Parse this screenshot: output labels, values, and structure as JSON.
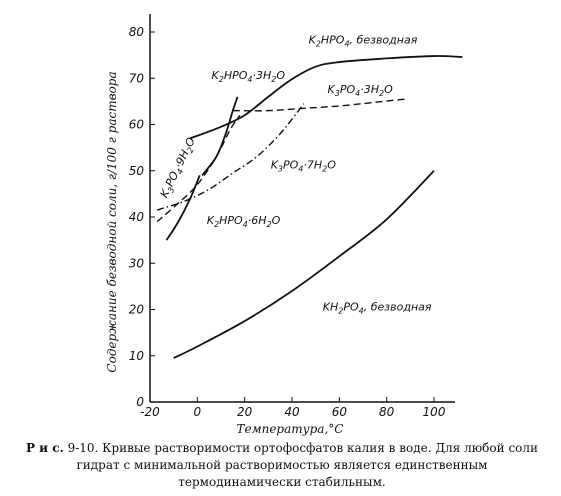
{
  "chart_data": {
    "type": "line",
    "title": "",
    "xlabel": "Температура,°С",
    "ylabel": "Содержание безводной соли, г/100 г раствора",
    "xlim": [
      -20,
      110
    ],
    "ylim": [
      0,
      85
    ],
    "x_ticks": [
      -20,
      0,
      20,
      40,
      60,
      80,
      100
    ],
    "y_ticks": [
      0,
      10,
      20,
      30,
      40,
      50,
      60,
      70,
      80
    ],
    "grid": false,
    "legend": "none",
    "series": [
      {
        "name": "K2HPO4, безводная",
        "style": "solid",
        "label_parts": [
          [
            "K",
            ""
          ],
          [
            "2",
            "sub"
          ],
          [
            "HPO",
            ""
          ],
          [
            "4",
            "sub"
          ],
          [
            ", безводная",
            ""
          ]
        ],
        "points": [
          [
            -3,
            57
          ],
          [
            10,
            59.5
          ],
          [
            20,
            62
          ],
          [
            30,
            66
          ],
          [
            40,
            69.8
          ],
          [
            50,
            72.5
          ],
          [
            60,
            73.5
          ],
          [
            80,
            74.3
          ],
          [
            100,
            74.8
          ],
          [
            112,
            74.6
          ]
        ]
      },
      {
        "name": "K2HPO4·3H2O",
        "style": "solid",
        "label_parts": [
          [
            "K",
            ""
          ],
          [
            "2",
            "sub"
          ],
          [
            "HPO",
            ""
          ],
          [
            "4",
            "sub"
          ],
          [
            "·3H",
            ""
          ],
          [
            "2",
            "sub"
          ],
          [
            "O",
            ""
          ]
        ],
        "points": [
          [
            2,
            49
          ],
          [
            8,
            53
          ],
          [
            12,
            58
          ],
          [
            15,
            63
          ],
          [
            17,
            66
          ]
        ]
      },
      {
        "name": "K2HPO4·6H2O",
        "style": "solid",
        "label_parts": [
          [
            "K",
            ""
          ],
          [
            "2",
            "sub"
          ],
          [
            "HPO",
            ""
          ],
          [
            "4",
            "sub"
          ],
          [
            "·6H",
            ""
          ],
          [
            "2",
            "sub"
          ],
          [
            "O",
            ""
          ]
        ],
        "points": [
          [
            -13,
            35
          ],
          [
            -8,
            39
          ],
          [
            -3,
            44
          ],
          [
            1,
            49
          ]
        ]
      },
      {
        "name": "K3PO4·9H2O",
        "style": "dashed",
        "label_parts": [
          [
            "K",
            ""
          ],
          [
            "3",
            "sub"
          ],
          [
            "PO",
            ""
          ],
          [
            "4",
            "sub"
          ],
          [
            "·9H",
            ""
          ],
          [
            "2",
            "sub"
          ],
          [
            "O",
            ""
          ]
        ],
        "points": [
          [
            -17,
            39
          ],
          [
            -8,
            43
          ],
          [
            0,
            47
          ],
          [
            8,
            53
          ],
          [
            14,
            59
          ],
          [
            18,
            62
          ]
        ]
      },
      {
        "name": "K3PO4·7H2O",
        "style": "dash-dot",
        "label_parts": [
          [
            "K",
            ""
          ],
          [
            "3",
            "sub"
          ],
          [
            "PO",
            ""
          ],
          [
            "4",
            "sub"
          ],
          [
            "·7H",
            ""
          ],
          [
            "2",
            "sub"
          ],
          [
            "O",
            ""
          ]
        ],
        "points": [
          [
            -17,
            41.5
          ],
          [
            -5,
            43.5
          ],
          [
            5,
            46
          ],
          [
            15,
            49.5
          ],
          [
            25,
            53
          ],
          [
            35,
            58
          ],
          [
            45,
            64.5
          ]
        ]
      },
      {
        "name": "K3PO4·3H2O",
        "style": "dashed",
        "label_parts": [
          [
            "K",
            ""
          ],
          [
            "3",
            "sub"
          ],
          [
            "PO",
            ""
          ],
          [
            "4",
            "sub"
          ],
          [
            "·3H",
            ""
          ],
          [
            "2",
            "sub"
          ],
          [
            "O",
            ""
          ]
        ],
        "points": [
          [
            15,
            63
          ],
          [
            30,
            63
          ],
          [
            45,
            63.5
          ],
          [
            60,
            64
          ],
          [
            75,
            64.8
          ],
          [
            88,
            65.5
          ]
        ]
      },
      {
        "name": "KH2PO4, безводная",
        "style": "solid",
        "label_parts": [
          [
            "KH",
            ""
          ],
          [
            "2",
            "sub"
          ],
          [
            "PO",
            ""
          ],
          [
            "4",
            "sub"
          ],
          [
            ", безводная",
            ""
          ]
        ],
        "points": [
          [
            -10,
            9.5
          ],
          [
            0,
            12
          ],
          [
            20,
            17.5
          ],
          [
            40,
            24
          ],
          [
            60,
            31.5
          ],
          [
            80,
            39.5
          ],
          [
            100,
            50
          ]
        ]
      }
    ],
    "annotations": [
      {
        "series": 0,
        "x": 47,
        "y": 77.5,
        "rotate": 0
      },
      {
        "series": 1,
        "x": 6,
        "y": 69.8,
        "rotate": 0
      },
      {
        "series": 2,
        "x": 4,
        "y": 38.5,
        "rotate": 0
      },
      {
        "series": 3,
        "x": -13,
        "y": 44,
        "rotate": -64
      },
      {
        "series": 4,
        "x": 31,
        "y": 50.5,
        "rotate": 0
      },
      {
        "series": 5,
        "x": 55,
        "y": 66.8,
        "rotate": 0
      },
      {
        "series": 6,
        "x": 53,
        "y": 19.8,
        "rotate": 0
      }
    ]
  },
  "caption": {
    "prefix": "Р и с.",
    "text": " 9-10. Кривые растворимости ортофосфатов калия в воде. Для любой соли гидрат с минимальной растворимостью является единственным термодинамически стабильным."
  }
}
